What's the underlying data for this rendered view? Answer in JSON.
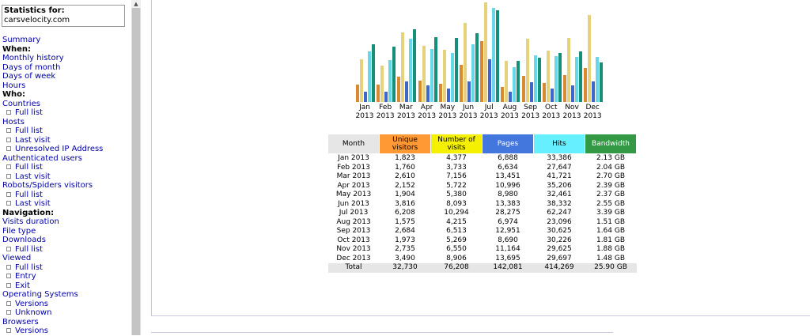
{
  "sidebar": {
    "stats_title": "Statistics for:",
    "domain": "carsvelocity.com",
    "nav": [
      {
        "type": "link",
        "label": "Summary",
        "name": "nav-summary"
      },
      {
        "type": "header",
        "label": "When:",
        "name": "nav-header-when"
      },
      {
        "type": "link",
        "label": "Monthly history",
        "name": "nav-monthly-history"
      },
      {
        "type": "link",
        "label": "Days of month",
        "name": "nav-days-of-month"
      },
      {
        "type": "link",
        "label": "Days of week",
        "name": "nav-days-of-week"
      },
      {
        "type": "link",
        "label": "Hours",
        "name": "nav-hours"
      },
      {
        "type": "header",
        "label": "Who:",
        "name": "nav-header-who"
      },
      {
        "type": "link",
        "label": "Countries",
        "name": "nav-countries"
      },
      {
        "type": "sub",
        "label": "Full list",
        "name": "nav-countries-full-list"
      },
      {
        "type": "link",
        "label": "Hosts",
        "name": "nav-hosts"
      },
      {
        "type": "sub",
        "label": "Full list",
        "name": "nav-hosts-full-list"
      },
      {
        "type": "sub",
        "label": "Last visit",
        "name": "nav-hosts-last-visit"
      },
      {
        "type": "sub",
        "label": "Unresolved IP Address",
        "name": "nav-hosts-unresolved-ip"
      },
      {
        "type": "link",
        "label": "Authenticated users",
        "name": "nav-authenticated-users"
      },
      {
        "type": "sub",
        "label": "Full list",
        "name": "nav-auth-full-list"
      },
      {
        "type": "sub",
        "label": "Last visit",
        "name": "nav-auth-last-visit"
      },
      {
        "type": "link",
        "label": "Robots/Spiders visitors",
        "name": "nav-robots"
      },
      {
        "type": "sub",
        "label": "Full list",
        "name": "nav-robots-full-list"
      },
      {
        "type": "sub",
        "label": "Last visit",
        "name": "nav-robots-last-visit"
      },
      {
        "type": "header",
        "label": "Navigation:",
        "name": "nav-header-navigation"
      },
      {
        "type": "link",
        "label": "Visits duration",
        "name": "nav-visits-duration"
      },
      {
        "type": "link",
        "label": "File type",
        "name": "nav-file-type"
      },
      {
        "type": "link",
        "label": "Downloads",
        "name": "nav-downloads"
      },
      {
        "type": "sub",
        "label": "Full list",
        "name": "nav-downloads-full-list"
      },
      {
        "type": "link",
        "label": "Viewed",
        "name": "nav-viewed"
      },
      {
        "type": "sub",
        "label": "Full list",
        "name": "nav-viewed-full-list"
      },
      {
        "type": "sub",
        "label": "Entry",
        "name": "nav-viewed-entry"
      },
      {
        "type": "sub",
        "label": "Exit",
        "name": "nav-viewed-exit"
      },
      {
        "type": "link",
        "label": "Operating Systems",
        "name": "nav-operating-systems"
      },
      {
        "type": "sub",
        "label": "Versions",
        "name": "nav-os-versions"
      },
      {
        "type": "sub",
        "label": "Unknown",
        "name": "nav-os-unknown"
      },
      {
        "type": "link",
        "label": "Browsers",
        "name": "nav-browsers"
      },
      {
        "type": "sub",
        "label": "Versions",
        "name": "nav-browsers-versions"
      }
    ]
  },
  "table": {
    "headers": [
      {
        "label": "Month",
        "color": "#e6e6e6"
      },
      {
        "label": "Unique visitors",
        "color": "#ff9933"
      },
      {
        "label": "Number of visits",
        "color": "#f4f000"
      },
      {
        "label": "Pages",
        "color": "#4477dd"
      },
      {
        "label": "Hits",
        "color": "#66f0ff"
      },
      {
        "label": "Bandwidth",
        "color": "#339944"
      }
    ],
    "rows": [
      [
        "Jan 2013",
        "1,823",
        "4,377",
        "6,888",
        "33,386",
        "2.13 GB"
      ],
      [
        "Feb 2013",
        "1,760",
        "3,733",
        "6,634",
        "27,647",
        "2.04 GB"
      ],
      [
        "Mar 2013",
        "2,610",
        "7,156",
        "13,451",
        "41,721",
        "2.70 GB"
      ],
      [
        "Apr 2013",
        "2,152",
        "5,722",
        "10,996",
        "35,206",
        "2.39 GB"
      ],
      [
        "May 2013",
        "1,904",
        "5,380",
        "8,980",
        "32,461",
        "2.37 GB"
      ],
      [
        "Jun 2013",
        "3,816",
        "8,093",
        "13,383",
        "38,332",
        "2.55 GB"
      ],
      [
        "Jul 2013",
        "6,208",
        "10,294",
        "28,275",
        "62,247",
        "3.39 GB"
      ],
      [
        "Aug 2013",
        "1,575",
        "4,215",
        "6,974",
        "23,096",
        "1.51 GB"
      ],
      [
        "Sep 2013",
        "2,684",
        "6,513",
        "12,951",
        "30,625",
        "1.64 GB"
      ],
      [
        "Oct 2013",
        "1,973",
        "5,269",
        "8,690",
        "30,226",
        "1.81 GB"
      ],
      [
        "Nov 2013",
        "2,735",
        "6,550",
        "11,164",
        "29,625",
        "1.88 GB"
      ],
      [
        "Dec 2013",
        "3,490",
        "8,906",
        "13,695",
        "29,697",
        "1.48 GB"
      ]
    ],
    "total": [
      "Total",
      "32,730",
      "76,208",
      "142,081",
      "414,269",
      "25.90 GB"
    ]
  },
  "chart_data": {
    "type": "bar",
    "categories": [
      [
        "Jan",
        "2013"
      ],
      [
        "Feb",
        "2013"
      ],
      [
        "Mar",
        "2013"
      ],
      [
        "Apr",
        "2013"
      ],
      [
        "May",
        "2013"
      ],
      [
        "Jun",
        "2013"
      ],
      [
        "Jul",
        "2013"
      ],
      [
        "Aug",
        "2013"
      ],
      [
        "Sep",
        "2013"
      ],
      [
        "Oct",
        "2013"
      ],
      [
        "Nov",
        "2013"
      ],
      [
        "Dec",
        "2013"
      ]
    ],
    "series": [
      {
        "name": "Unique visitors",
        "color": "#d98a30",
        "values": [
          1823,
          1760,
          2610,
          2152,
          1904,
          3816,
          6208,
          1575,
          2684,
          1973,
          2735,
          3490
        ]
      },
      {
        "name": "Number of visits",
        "color": "#e6d27a",
        "values": [
          4377,
          3733,
          7156,
          5722,
          5380,
          8093,
          10294,
          4215,
          6513,
          5269,
          6550,
          8906
        ]
      },
      {
        "name": "Pages",
        "color": "#3f66cc",
        "values": [
          6888,
          6634,
          13451,
          10996,
          8980,
          13383,
          28275,
          6974,
          12951,
          8690,
          11164,
          13695
        ]
      },
      {
        "name": "Hits",
        "color": "#66d8e8",
        "values": [
          33386,
          27647,
          41721,
          35206,
          32461,
          38332,
          62247,
          23096,
          30625,
          30226,
          29625,
          29697
        ]
      },
      {
        "name": "Bandwidth",
        "color": "#158f7a",
        "values": [
          2.13,
          2.04,
          2.7,
          2.39,
          2.37,
          2.55,
          3.39,
          1.51,
          1.64,
          1.81,
          1.88,
          1.48
        ]
      }
    ],
    "scale_groups": [
      [
        0,
        1
      ],
      [
        2,
        3
      ],
      [
        4
      ]
    ],
    "clipped_top": true
  }
}
